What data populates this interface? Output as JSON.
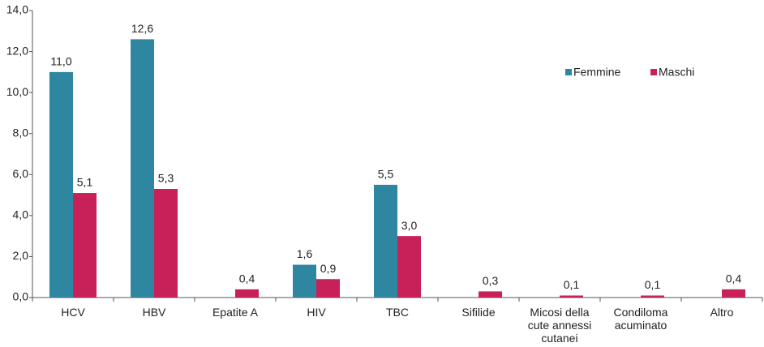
{
  "chart_data": {
    "type": "bar",
    "categories": [
      "HCV",
      "HBV",
      "Epatite A",
      "HIV",
      "TBC",
      "Sifilide",
      "Micosi della\ncute annessi\ncutanei",
      "Condiloma\nacuminato",
      "Altro"
    ],
    "series": [
      {
        "name": "Femmine",
        "color": "#2e86a0",
        "values": [
          11.0,
          12.6,
          null,
          1.6,
          5.5,
          null,
          null,
          null,
          null
        ],
        "value_labels": [
          "11,0",
          "12,6",
          null,
          "1,6",
          "5,5",
          null,
          null,
          null,
          null
        ]
      },
      {
        "name": "Maschi",
        "color": "#c8215a",
        "values": [
          5.1,
          5.3,
          0.4,
          0.9,
          3.0,
          0.3,
          0.1,
          0.1,
          0.4
        ],
        "value_labels": [
          "5,1",
          "5,3",
          "0,4",
          "0,9",
          "3,0",
          "0,3",
          "0,1",
          "0,1",
          "0,4"
        ]
      }
    ],
    "ylim": [
      0,
      14
    ],
    "yticks": [
      {
        "value": 0,
        "label": "0,0"
      },
      {
        "value": 2,
        "label": "2,0"
      },
      {
        "value": 4,
        "label": "4,0"
      },
      {
        "value": 6,
        "label": "6,0"
      },
      {
        "value": 8,
        "label": "8,0"
      },
      {
        "value": 10,
        "label": "10,0"
      },
      {
        "value": 12,
        "label": "12,0"
      },
      {
        "value": 14,
        "label": "14,0"
      }
    ],
    "grid": false,
    "legend": "upper right"
  }
}
